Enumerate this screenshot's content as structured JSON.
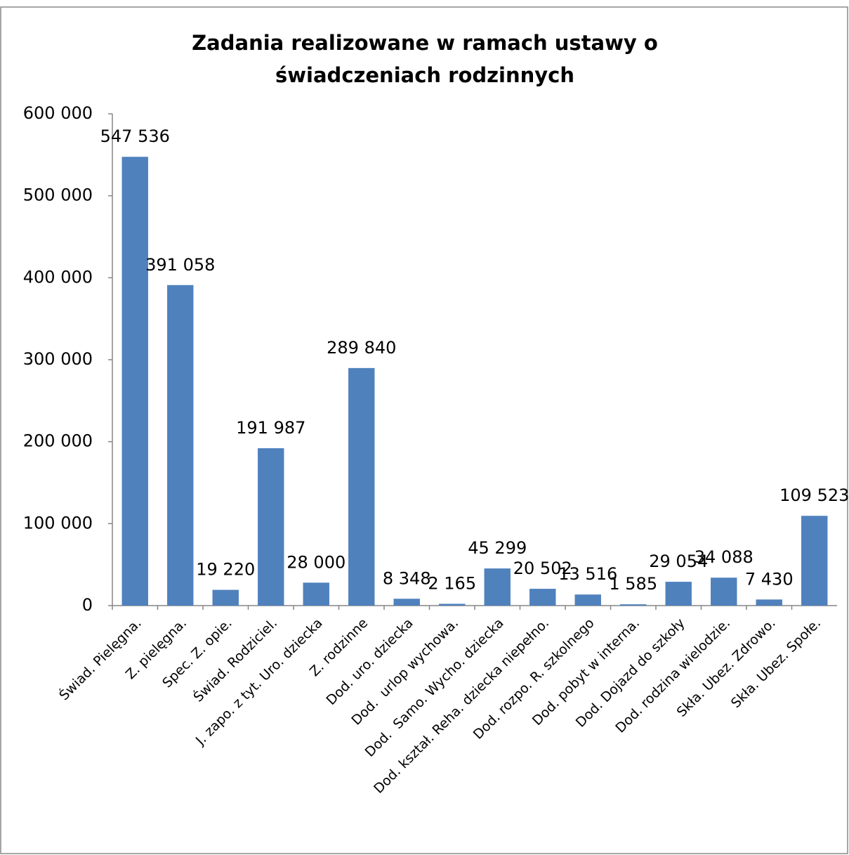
{
  "chart_data": {
    "type": "bar",
    "title": "Zadania realizowane w ramach ustawy o świadczeniach rodzinnych",
    "categories": [
      "Świad. Pielęgna.",
      "Z. pielęgna.",
      "Spec. Z. opie.",
      "Świad. Rodziciel.",
      "J. zapo. z tyt. Uro. dziecka",
      "Z. rodzinne",
      "Dod. uro. dziecka",
      "Dod.  urlop wychowa.",
      "Dod.  Samo. Wycho. dziecka",
      "Dod. kształ. Reha. dziecka niepełno.",
      "Dod. rozpo. R. szkolnego",
      "Dod. pobyt w interna.",
      "Dod. Dojazd do szkoły",
      "Dod. rodzina wielodzie.",
      "Skła. Ubez. Zdrowo.",
      "Skła. Ubez. Społe."
    ],
    "values": [
      547536,
      391058,
      19220,
      191987,
      28000,
      289840,
      8348,
      2165,
      45299,
      20502,
      13516,
      1585,
      29054,
      34088,
      7430,
      109523
    ],
    "value_labels": [
      "547 536",
      "391 058",
      "19 220",
      "191 987",
      "28 000",
      "289 840",
      "8 348",
      "2 165",
      "45 299",
      "20 502",
      "13 516",
      "1 585",
      "29 054",
      "34 088",
      "7 430",
      "109 523"
    ],
    "color": "#4f81bd",
    "ylim": [
      0,
      600000
    ],
    "yticks": [
      0,
      {
        "value": 100000,
        "label": "100 000"
      },
      {
        "value": 200000,
        "label": "200 000"
      },
      {
        "value": 300000,
        "label": "300 000"
      },
      {
        "value": 400000,
        "label": "400 000"
      },
      {
        "value": 500000,
        "label": "500 000"
      },
      {
        "value": 600000,
        "label": "600 000"
      }
    ],
    "grid": false
  }
}
